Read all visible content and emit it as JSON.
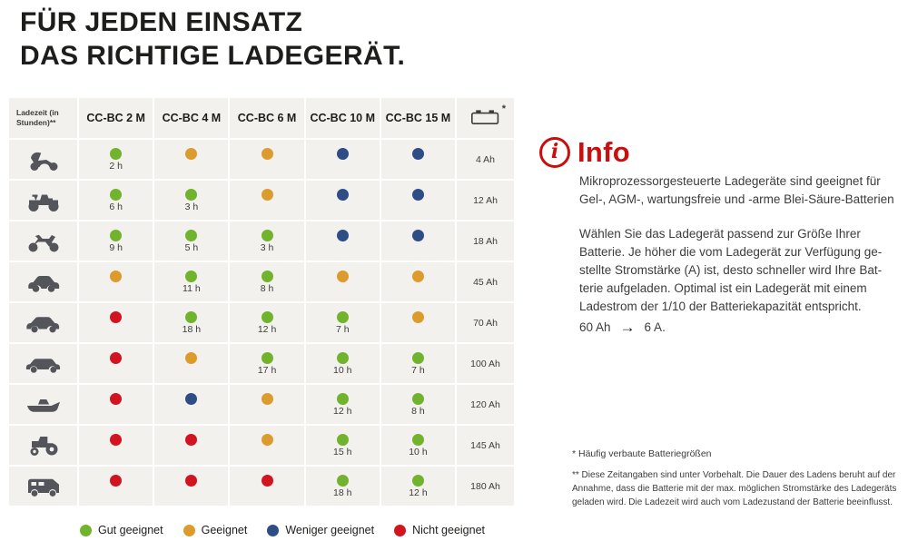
{
  "title": {
    "line1": "FÜR JEDEN EINSATZ",
    "line2": "DAS RICHTIGE LADEGERÄT."
  },
  "colors": {
    "rating": {
      "green": "#71b32c",
      "orange": "#dc9b2d",
      "blue": "#2e4d87",
      "red": "#d11420"
    },
    "accent_red": "#c8100e"
  },
  "table": {
    "header": {
      "ladezeit": "Ladezeit (in Stunden)**",
      "products": [
        "CC-BC 2 M",
        "CC-BC 4 M",
        "CC-BC 6 M",
        "CC-BC 10 M",
        "CC-BC 15 M"
      ],
      "battery_icon": "car-battery-icon",
      "battery_mark": "*"
    },
    "rows": [
      {
        "vehicle": "scooter",
        "capacity": "4 Ah",
        "cells": [
          {
            "rating": "green",
            "label": "2 h"
          },
          {
            "rating": "orange",
            "label": ""
          },
          {
            "rating": "orange",
            "label": ""
          },
          {
            "rating": "blue",
            "label": ""
          },
          {
            "rating": "blue",
            "label": ""
          }
        ]
      },
      {
        "vehicle": "quad",
        "capacity": "12 Ah",
        "cells": [
          {
            "rating": "green",
            "label": "6 h"
          },
          {
            "rating": "green",
            "label": "3 h"
          },
          {
            "rating": "orange",
            "label": ""
          },
          {
            "rating": "blue",
            "label": ""
          },
          {
            "rating": "blue",
            "label": ""
          }
        ]
      },
      {
        "vehicle": "motorcycle",
        "capacity": "18 Ah",
        "cells": [
          {
            "rating": "green",
            "label": "9 h"
          },
          {
            "rating": "green",
            "label": "5 h"
          },
          {
            "rating": "green",
            "label": "3 h"
          },
          {
            "rating": "blue",
            "label": ""
          },
          {
            "rating": "blue",
            "label": ""
          }
        ]
      },
      {
        "vehicle": "small-car",
        "capacity": "45 Ah",
        "cells": [
          {
            "rating": "orange",
            "label": ""
          },
          {
            "rating": "green",
            "label": "11 h"
          },
          {
            "rating": "green",
            "label": "8 h"
          },
          {
            "rating": "orange",
            "label": ""
          },
          {
            "rating": "orange",
            "label": ""
          }
        ]
      },
      {
        "vehicle": "car",
        "capacity": "70 Ah",
        "cells": [
          {
            "rating": "red",
            "label": ""
          },
          {
            "rating": "green",
            "label": "18 h"
          },
          {
            "rating": "green",
            "label": "12 h"
          },
          {
            "rating": "green",
            "label": "7 h"
          },
          {
            "rating": "orange",
            "label": ""
          }
        ]
      },
      {
        "vehicle": "limousine",
        "capacity": "100 Ah",
        "cells": [
          {
            "rating": "red",
            "label": ""
          },
          {
            "rating": "orange",
            "label": ""
          },
          {
            "rating": "green",
            "label": "17 h"
          },
          {
            "rating": "green",
            "label": "10 h"
          },
          {
            "rating": "green",
            "label": "7 h"
          }
        ]
      },
      {
        "vehicle": "boat",
        "capacity": "120 Ah",
        "cells": [
          {
            "rating": "red",
            "label": ""
          },
          {
            "rating": "blue",
            "label": ""
          },
          {
            "rating": "orange",
            "label": ""
          },
          {
            "rating": "green",
            "label": "12 h"
          },
          {
            "rating": "green",
            "label": "8 h"
          }
        ]
      },
      {
        "vehicle": "tractor",
        "capacity": "145 Ah",
        "cells": [
          {
            "rating": "red",
            "label": ""
          },
          {
            "rating": "red",
            "label": ""
          },
          {
            "rating": "orange",
            "label": ""
          },
          {
            "rating": "green",
            "label": "15 h"
          },
          {
            "rating": "green",
            "label": "10 h"
          }
        ]
      },
      {
        "vehicle": "camper",
        "capacity": "180 Ah",
        "cells": [
          {
            "rating": "red",
            "label": ""
          },
          {
            "rating": "red",
            "label": ""
          },
          {
            "rating": "red",
            "label": ""
          },
          {
            "rating": "green",
            "label": "18 h"
          },
          {
            "rating": "green",
            "label": "12 h"
          }
        ]
      }
    ]
  },
  "legend": [
    {
      "key": "green",
      "label": "Gut geeignet"
    },
    {
      "key": "orange",
      "label": "Geeignet"
    },
    {
      "key": "blue",
      "label": "Weniger geeignet"
    },
    {
      "key": "red",
      "label": "Nicht geeignet"
    }
  ],
  "info": {
    "heading": "Info",
    "paragraph1": "Mikroprozessorgesteuerte Ladegeräte sind geeignet für\nGel-, AGM-, wartungsfreie und -arme Blei-Säure-Batterien",
    "paragraph2": "Wählen Sie das Ladegerät passend zur Größe Ihrer\nBatterie. Je höher die vom Ladegerät zur Verfügung ge-\nstellte Stromstärke (A) ist, desto schneller wird Ihre Bat-\nterie aufgeladen. Optimal ist ein Ladegerät mit einem\nLadestrom der 1/10 der Batteriekapazität entspricht.",
    "conversion": {
      "from": "60 Ah",
      "arrow": "→",
      "to": "6 A."
    }
  },
  "footnotes": {
    "note1": "* Häufig verbaute Batteriegrößen",
    "note2": "** Diese Zeitangaben sind unter Vorbehalt. Die Dauer des Ladens beruht auf der\nAnnahme, dass die Batterie mit der max. möglichen Stromstärke des Ladegeräts\ngeladen wird. Die Ladezeit wird auch vom Ladezustand der Batterie beeinflusst."
  }
}
